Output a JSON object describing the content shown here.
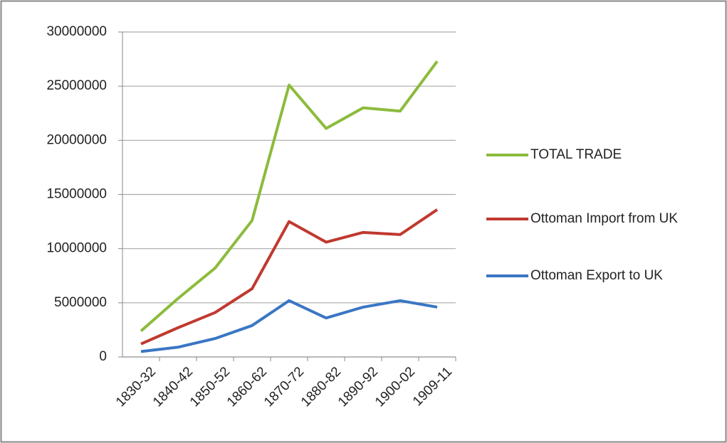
{
  "chart_data": {
    "type": "line",
    "categories": [
      "1830-32",
      "1840-42",
      "1850-52",
      "1860-62",
      "1870-72",
      "1880-82",
      "1890-92",
      "1900-02",
      "1909-11"
    ],
    "series": [
      {
        "name": "TOTAL TRADE",
        "color": "#8cbb3c",
        "values": [
          2400000,
          5400000,
          8200000,
          12600000,
          25100000,
          21100000,
          23000000,
          22700000,
          27300000
        ]
      },
      {
        "name": "Ottoman Import from UK",
        "color": "#c0392f",
        "values": [
          1200000,
          2700000,
          4100000,
          6300000,
          12500000,
          10600000,
          11500000,
          11300000,
          13600000
        ]
      },
      {
        "name": "Ottoman Export to UK",
        "color": "#3a76c4",
        "values": [
          500000,
          900000,
          1700000,
          2900000,
          5200000,
          3600000,
          4600000,
          5200000,
          4600000
        ]
      }
    ],
    "ylim": [
      0,
      30000000
    ],
    "yticks": [
      0,
      5000000,
      10000000,
      15000000,
      20000000,
      25000000,
      30000000
    ],
    "grid": true,
    "legend": "right"
  }
}
